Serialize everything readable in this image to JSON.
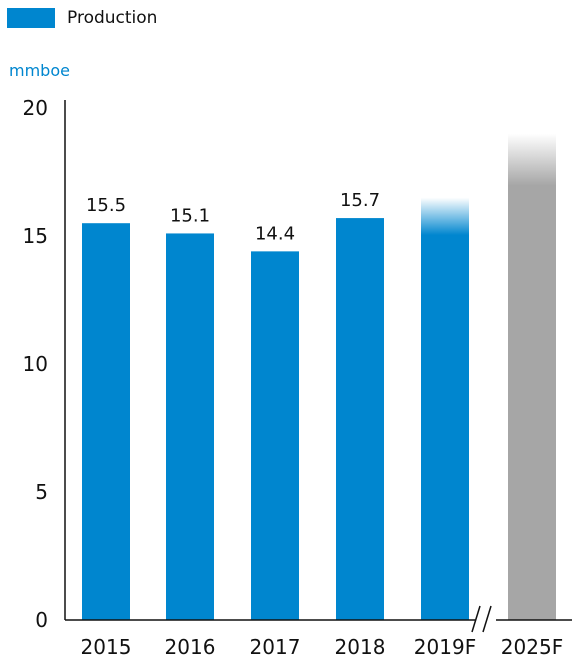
{
  "legend": {
    "label": "Production",
    "color": "#0086cf"
  },
  "unit": "mmboe",
  "colors": {
    "bar": "#0086cf",
    "forecast_far": "#a6a6a6",
    "axis": "#111111"
  },
  "chart_data": {
    "type": "bar",
    "title": "",
    "xlabel": "",
    "ylabel": "mmboe",
    "ylim": [
      0,
      20
    ],
    "yticks": [
      0,
      5,
      10,
      15,
      20
    ],
    "categories": [
      "2015",
      "2016",
      "2017",
      "2018",
      "2019F",
      "2025F"
    ],
    "series": [
      {
        "name": "Production",
        "values": [
          15.5,
          15.1,
          14.4,
          15.7,
          16.5,
          19.0
        ],
        "data_labels": [
          "15.5",
          "15.1",
          "14.4",
          "15.7",
          "",
          ""
        ]
      }
    ],
    "axis_break_between": [
      "2019F",
      "2025F"
    ],
    "forecast_categories": [
      "2019F",
      "2025F"
    ],
    "grid": false,
    "legend_position": "top-left"
  }
}
